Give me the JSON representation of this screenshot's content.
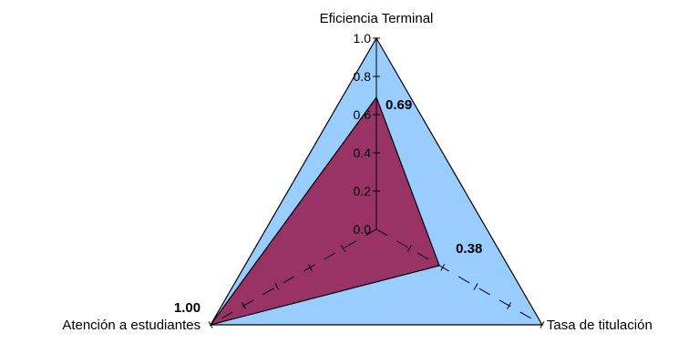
{
  "chart_data": {
    "type": "radar",
    "axes": [
      "Eficiencia Terminal",
      "Tasa de titulación",
      "Atención a estudiantes"
    ],
    "rlim": [
      0,
      1
    ],
    "ticks": [
      "0.0",
      "0.2",
      "0.4",
      "0.6",
      "0.8",
      "1.0"
    ],
    "series": [
      {
        "values": [
          1.0,
          1.0,
          1.0
        ],
        "color": "#99ccff"
      },
      {
        "values": [
          0.69,
          0.38,
          1.0
        ],
        "color": "#993366"
      }
    ],
    "data_labels": [
      "0.69",
      "0.38",
      "1.00"
    ],
    "grid": false,
    "legend": "none"
  }
}
